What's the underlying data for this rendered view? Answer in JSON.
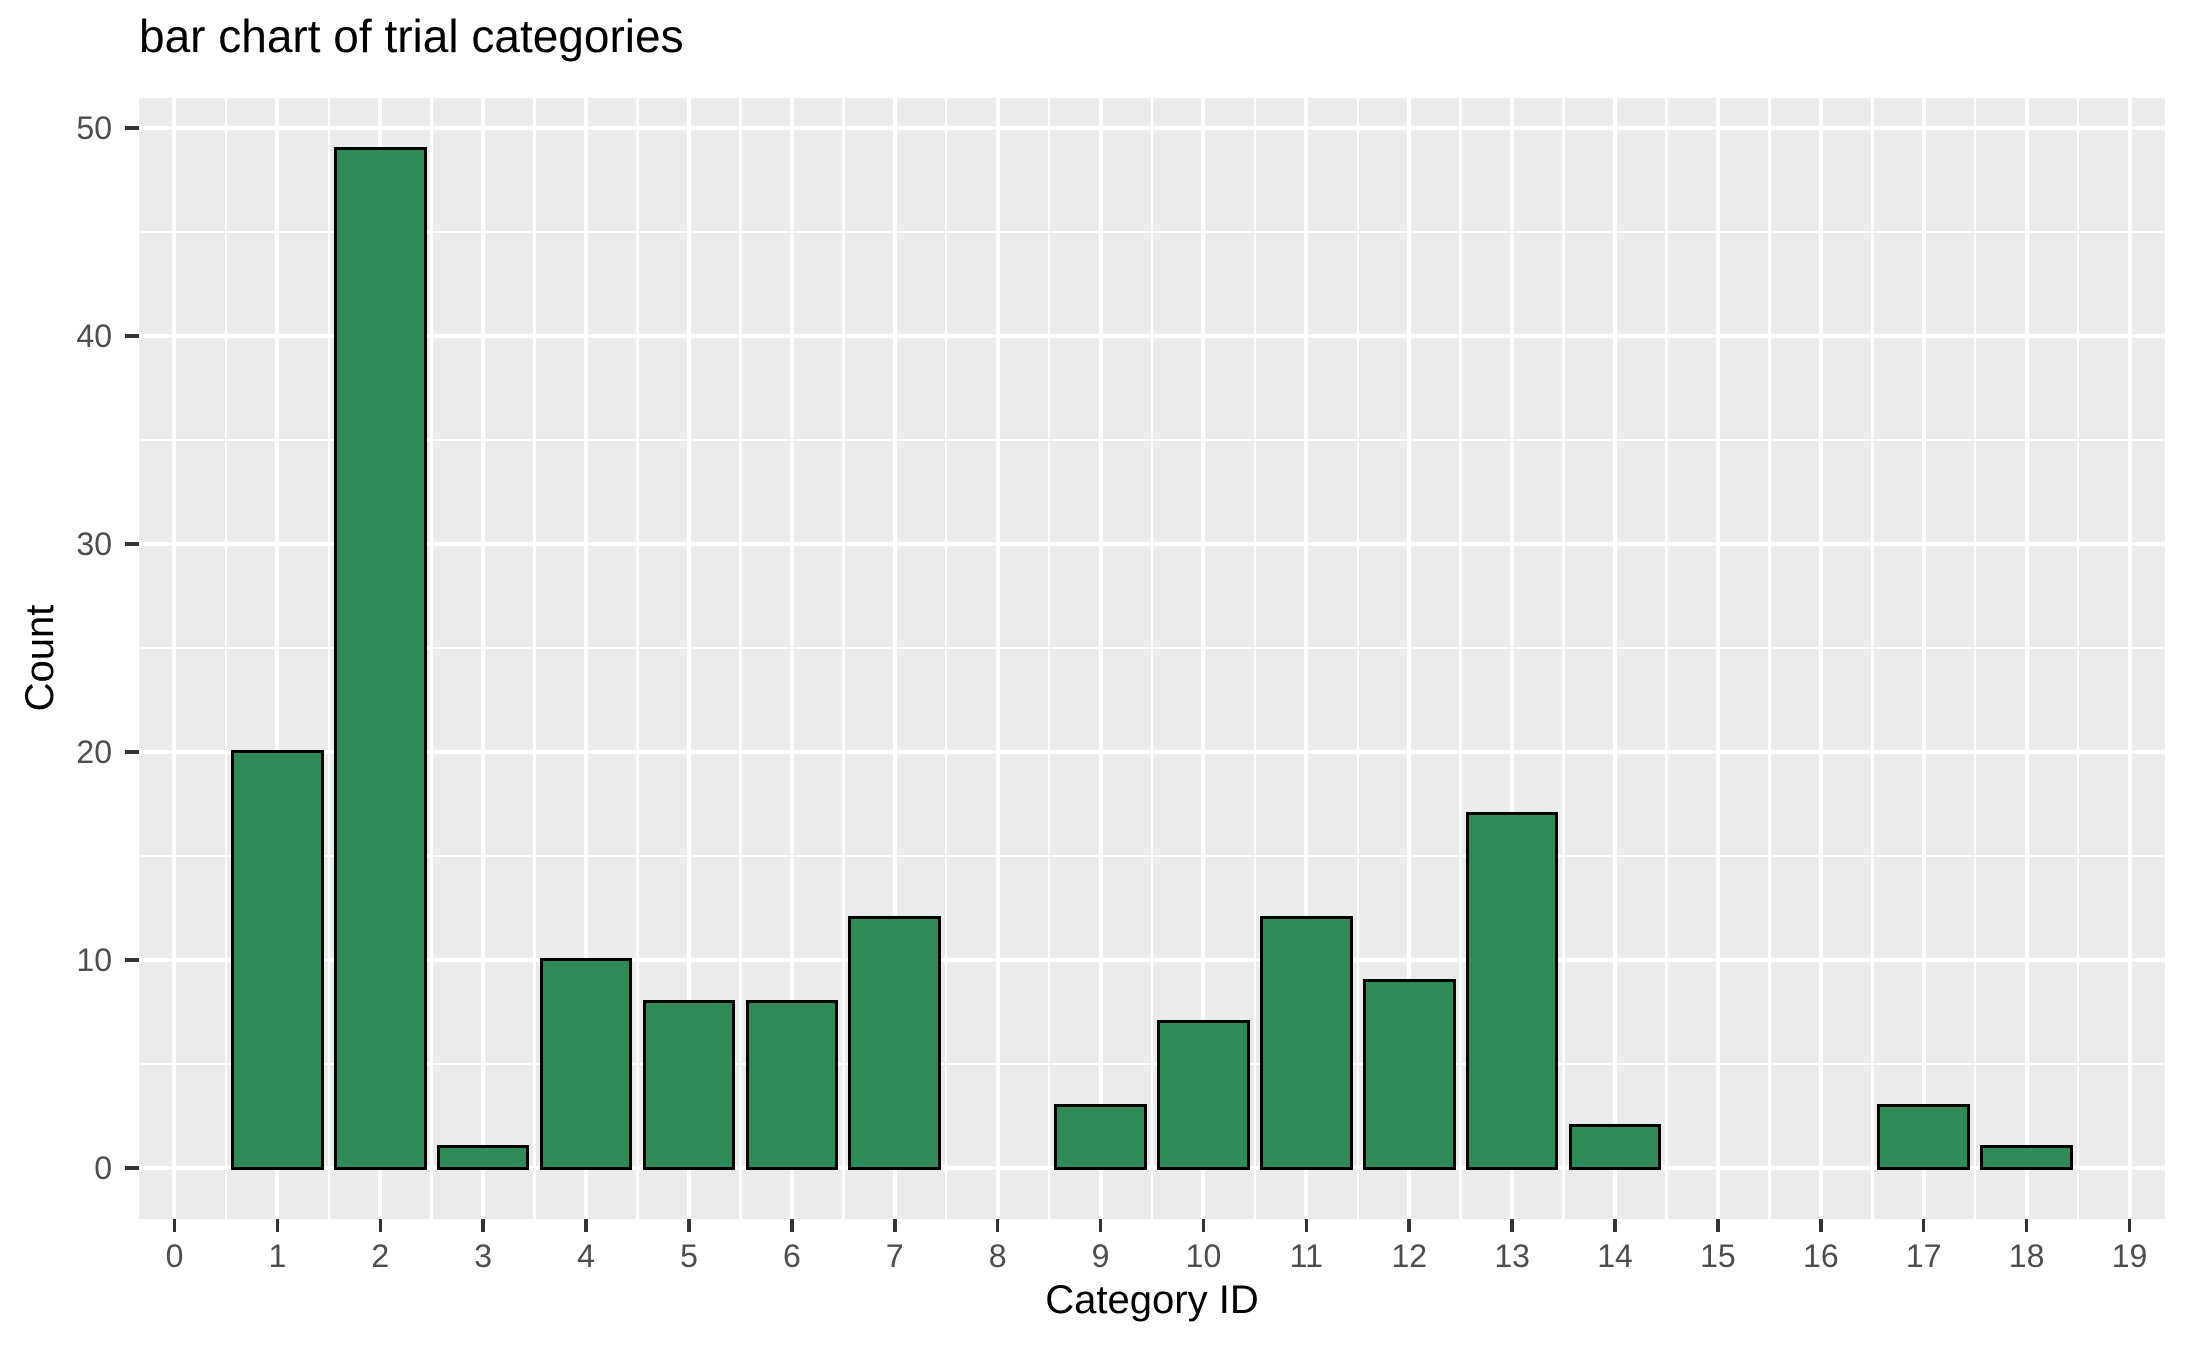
{
  "chart_data": {
    "type": "bar",
    "title": "bar chart of trial categories",
    "xlabel": "Category ID",
    "ylabel": "Count",
    "categories": [
      0,
      1,
      2,
      3,
      4,
      5,
      6,
      7,
      8,
      9,
      10,
      11,
      12,
      13,
      14,
      15,
      16,
      17,
      18,
      19
    ],
    "values": [
      0,
      20,
      49,
      1,
      10,
      8,
      8,
      12,
      0,
      3,
      7,
      12,
      9,
      17,
      2,
      0,
      0,
      3,
      1,
      0
    ],
    "x_tick_labels": [
      "0",
      "1",
      "2",
      "3",
      "4",
      "5",
      "6",
      "7",
      "8",
      "9",
      "10",
      "11",
      "12",
      "13",
      "14",
      "15",
      "16",
      "17",
      "18",
      "19"
    ],
    "y_tick_labels": [
      "0",
      "10",
      "20",
      "30",
      "40",
      "50"
    ],
    "y_major_breaks": [
      0,
      10,
      20,
      30,
      40,
      50
    ],
    "y_minor_breaks": [
      5,
      15,
      25,
      35,
      45
    ],
    "xlim": [
      -0.345,
      19.345
    ],
    "ylim": [
      -2.45,
      51.45
    ],
    "bar_width_fraction": 0.9,
    "grid": "major-and-minor",
    "legend_position": "none",
    "colors": {
      "bar_fill": "#2E8B57",
      "bar_border": "#000000",
      "panel_background": "#EBEBEB",
      "gridline": "#FFFFFF",
      "tick_label": "#4D4D4D",
      "tick_mark": "#333333",
      "title_text": "#000000"
    }
  }
}
